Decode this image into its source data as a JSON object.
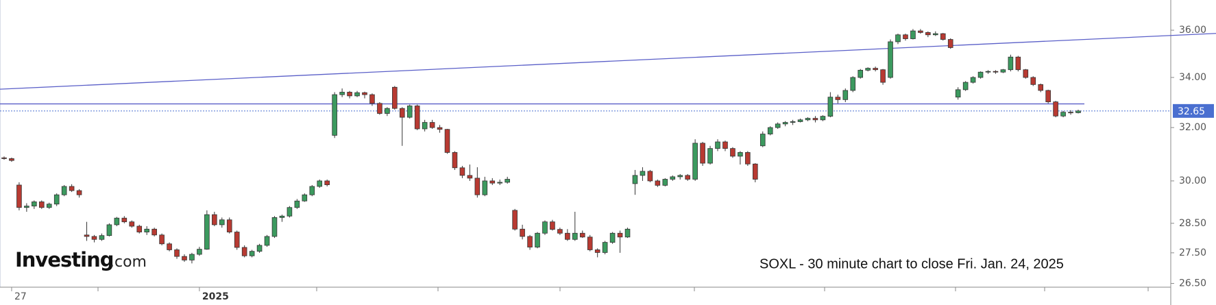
{
  "chart_data": {
    "type": "candlestick",
    "log_scale": true,
    "ylim": [
      26.38,
      37.34
    ],
    "yticks": [
      {
        "value": 26.5,
        "label": "26.50"
      },
      {
        "value": 27.5,
        "label": "27.50"
      },
      {
        "value": 28.5,
        "label": "28.50"
      },
      {
        "value": 30,
        "label": "30.00"
      },
      {
        "value": 32,
        "label": "32.00"
      },
      {
        "value": 34,
        "label": "34.00"
      },
      {
        "value": 36,
        "label": "36.00"
      }
    ],
    "up_color": "#3c9a5f",
    "down_color": "#b83a32",
    "last_price": 32.65,
    "last_price_color": "#4a6fd0",
    "trendline": {
      "start": 33.52,
      "end": 35.86,
      "color": "#5a5fc8"
    },
    "level": {
      "value": 32.93,
      "color": "#5a5fc8"
    },
    "annotation": "SOXL - 30 minute chart to close Fri. Jan. 24, 2025",
    "logo": [
      "Investing",
      ".com"
    ],
    "categories": [
      null,
      "27",
      null,
      null,
      null,
      null,
      null,
      null,
      null,
      null,
      null,
      null,
      null,
      null,
      null,
      null,
      null,
      null,
      null,
      null,
      null,
      null,
      null,
      null,
      null,
      null,
      "2025",
      null,
      null,
      null,
      null,
      null,
      null,
      null,
      null,
      null,
      null,
      null,
      null,
      null,
      null,
      null,
      null,
      null,
      null,
      null,
      null,
      null,
      null,
      null,
      null,
      null,
      null,
      null,
      null,
      null,
      null,
      null,
      null,
      null,
      null,
      null,
      null,
      null,
      null,
      null,
      null,
      null,
      null,
      null,
      null,
      null,
      null,
      null,
      null,
      null,
      null,
      null,
      null,
      null,
      null,
      null,
      null,
      null,
      null,
      null,
      null,
      null,
      null,
      null,
      null,
      null,
      null,
      null,
      null,
      null,
      null,
      null,
      null,
      null,
      null,
      null,
      null,
      null,
      null,
      null,
      null,
      null,
      null,
      null,
      null,
      null,
      null,
      null,
      null,
      null,
      null,
      null,
      null,
      null,
      null,
      null,
      null,
      null,
      null,
      null,
      null,
      null,
      null,
      null,
      null,
      null,
      null,
      null,
      null,
      null,
      null,
      null,
      null,
      null,
      null,
      null,
      null,
      null
    ],
    "candles": [
      [
        30.85,
        30.9,
        30.78,
        30.82
      ],
      [
        30.82,
        30.86,
        30.7,
        30.75
      ],
      [
        29.85,
        29.95,
        28.95,
        29.05
      ],
      [
        29.05,
        29.2,
        28.9,
        29.1
      ],
      [
        29.1,
        29.3,
        29.0,
        29.25
      ],
      [
        29.25,
        29.3,
        29.0,
        29.05
      ],
      [
        29.05,
        29.22,
        29.0,
        29.17
      ],
      [
        29.17,
        29.55,
        29.1,
        29.5
      ],
      [
        29.5,
        29.85,
        29.45,
        29.8
      ],
      [
        29.8,
        29.88,
        29.6,
        29.65
      ],
      [
        29.65,
        29.7,
        29.4,
        29.5
      ],
      [
        28.1,
        28.55,
        27.9,
        28.05
      ],
      [
        28.05,
        28.1,
        27.85,
        27.95
      ],
      [
        27.95,
        28.15,
        27.9,
        28.08
      ],
      [
        28.08,
        28.5,
        28.05,
        28.45
      ],
      [
        28.45,
        28.72,
        28.4,
        28.68
      ],
      [
        28.68,
        28.75,
        28.5,
        28.55
      ],
      [
        28.55,
        28.6,
        28.35,
        28.4
      ],
      [
        28.4,
        28.45,
        28.15,
        28.2
      ],
      [
        28.2,
        28.4,
        28.1,
        28.3
      ],
      [
        28.3,
        28.35,
        28.05,
        28.1
      ],
      [
        28.1,
        28.15,
        27.75,
        27.8
      ],
      [
        27.8,
        27.85,
        27.55,
        27.6
      ],
      [
        27.6,
        27.65,
        27.3,
        27.38
      ],
      [
        27.38,
        27.45,
        27.2,
        27.26
      ],
      [
        27.26,
        27.5,
        27.15,
        27.45
      ],
      [
        27.45,
        27.7,
        27.4,
        27.62
      ],
      [
        27.62,
        28.95,
        27.6,
        28.8
      ],
      [
        28.8,
        28.9,
        28.4,
        28.45
      ],
      [
        28.45,
        28.7,
        28.35,
        28.62
      ],
      [
        28.62,
        28.7,
        28.15,
        28.2
      ],
      [
        28.2,
        28.25,
        27.6,
        27.68
      ],
      [
        27.68,
        27.75,
        27.35,
        27.4
      ],
      [
        27.4,
        27.6,
        27.35,
        27.55
      ],
      [
        27.55,
        27.8,
        27.5,
        27.75
      ],
      [
        27.75,
        28.1,
        27.7,
        28.05
      ],
      [
        28.05,
        28.75,
        28.0,
        28.7
      ],
      [
        28.7,
        28.8,
        28.55,
        28.75
      ],
      [
        28.75,
        29.1,
        28.7,
        29.05
      ],
      [
        29.05,
        29.35,
        29.0,
        29.28
      ],
      [
        29.28,
        29.55,
        29.25,
        29.5
      ],
      [
        29.5,
        29.85,
        29.45,
        29.8
      ],
      [
        29.8,
        30.05,
        29.75,
        30.0
      ],
      [
        30.0,
        30.05,
        29.8,
        29.86
      ],
      [
        31.7,
        33.4,
        31.6,
        33.3
      ],
      [
        33.3,
        33.55,
        33.2,
        33.4
      ],
      [
        33.4,
        33.45,
        33.15,
        33.25
      ],
      [
        33.25,
        33.45,
        33.2,
        33.38
      ],
      [
        33.38,
        33.42,
        33.15,
        33.3
      ],
      [
        33.3,
        33.35,
        32.85,
        32.95
      ],
      [
        32.95,
        33.0,
        32.5,
        32.55
      ],
      [
        32.55,
        32.8,
        32.45,
        32.75
      ],
      [
        33.6,
        33.65,
        32.7,
        32.75
      ],
      [
        32.75,
        32.8,
        31.3,
        32.4
      ],
      [
        32.4,
        32.9,
        32.35,
        32.85
      ],
      [
        32.85,
        32.9,
        31.9,
        31.95
      ],
      [
        31.95,
        32.3,
        31.85,
        32.2
      ],
      [
        32.2,
        32.3,
        31.95,
        32.0
      ],
      [
        32.0,
        32.1,
        31.8,
        31.93
      ],
      [
        31.93,
        31.95,
        31.0,
        31.05
      ],
      [
        31.05,
        31.1,
        30.4,
        30.48
      ],
      [
        30.48,
        30.55,
        30.1,
        30.2
      ],
      [
        30.2,
        30.6,
        30.0,
        30.1
      ],
      [
        30.1,
        30.5,
        29.4,
        29.5
      ],
      [
        29.5,
        30.15,
        29.45,
        30.0
      ],
      [
        30.0,
        30.1,
        29.85,
        29.92
      ],
      [
        29.92,
        30.05,
        29.85,
        29.95
      ],
      [
        29.95,
        30.15,
        29.9,
        30.06
      ],
      [
        28.95,
        29.0,
        28.25,
        28.3
      ],
      [
        28.3,
        28.45,
        27.95,
        28.05
      ],
      [
        28.05,
        28.1,
        27.6,
        27.69
      ],
      [
        27.69,
        28.2,
        27.65,
        28.16
      ],
      [
        28.16,
        28.6,
        28.1,
        28.55
      ],
      [
        28.55,
        28.62,
        28.25,
        28.29
      ],
      [
        28.29,
        28.35,
        28.1,
        28.16
      ],
      [
        28.16,
        28.3,
        27.9,
        27.95
      ],
      [
        27.95,
        28.9,
        27.9,
        28.16
      ],
      [
        28.16,
        28.25,
        28.0,
        28.03
      ],
      [
        28.03,
        28.1,
        27.55,
        27.6
      ],
      [
        27.6,
        27.65,
        27.35,
        27.51
      ],
      [
        27.51,
        27.9,
        27.45,
        27.85
      ],
      [
        27.85,
        28.2,
        27.8,
        28.16
      ],
      [
        28.16,
        28.25,
        27.5,
        28.03
      ],
      [
        28.03,
        28.35,
        28.0,
        28.3
      ],
      [
        29.9,
        30.4,
        29.5,
        30.2
      ],
      [
        30.2,
        30.5,
        30.0,
        30.35
      ],
      [
        30.35,
        30.4,
        29.95,
        30.0
      ],
      [
        30.0,
        30.05,
        29.78,
        29.84
      ],
      [
        29.84,
        30.1,
        29.8,
        30.06
      ],
      [
        30.06,
        30.2,
        30.0,
        30.15
      ],
      [
        30.15,
        30.25,
        30.05,
        30.2
      ],
      [
        30.2,
        30.25,
        30.0,
        30.06
      ],
      [
        30.06,
        31.55,
        30.0,
        31.4
      ],
      [
        31.4,
        31.45,
        30.55,
        30.65
      ],
      [
        30.65,
        31.3,
        30.6,
        31.2
      ],
      [
        31.2,
        31.55,
        31.1,
        31.45
      ],
      [
        31.45,
        31.5,
        31.1,
        31.2
      ],
      [
        31.2,
        31.25,
        30.85,
        30.91
      ],
      [
        30.91,
        31.1,
        30.6,
        31.05
      ],
      [
        31.05,
        31.1,
        30.55,
        30.62
      ],
      [
        30.62,
        30.65,
        29.95,
        30.06
      ],
      [
        31.3,
        31.85,
        31.25,
        31.75
      ],
      [
        31.75,
        32.05,
        31.7,
        32.0
      ],
      [
        32.0,
        32.2,
        31.95,
        32.14
      ],
      [
        32.14,
        32.25,
        32.05,
        32.2
      ],
      [
        32.2,
        32.3,
        32.1,
        32.23
      ],
      [
        32.23,
        32.35,
        32.2,
        32.3
      ],
      [
        32.3,
        32.4,
        32.25,
        32.36
      ],
      [
        32.36,
        32.45,
        32.2,
        32.3
      ],
      [
        32.3,
        32.48,
        32.25,
        32.44
      ],
      [
        32.44,
        33.4,
        32.4,
        33.2
      ],
      [
        33.2,
        33.3,
        32.95,
        33.1
      ],
      [
        33.1,
        33.55,
        33.0,
        33.47
      ],
      [
        33.47,
        34.05,
        33.4,
        34.0
      ],
      [
        34.0,
        34.35,
        33.95,
        34.3
      ],
      [
        34.3,
        34.42,
        34.25,
        34.38
      ],
      [
        34.38,
        34.45,
        34.25,
        34.32
      ],
      [
        34.32,
        34.35,
        33.7,
        33.8
      ],
      [
        34.0,
        35.6,
        33.95,
        35.5
      ],
      [
        35.5,
        35.85,
        35.4,
        35.8
      ],
      [
        35.8,
        35.85,
        35.55,
        35.63
      ],
      [
        35.63,
        36.05,
        35.6,
        35.97
      ],
      [
        35.97,
        36.05,
        35.85,
        35.9
      ],
      [
        35.9,
        35.95,
        35.7,
        35.8
      ],
      [
        35.8,
        35.95,
        35.75,
        35.85
      ],
      [
        35.85,
        35.88,
        35.55,
        35.6
      ],
      [
        35.6,
        35.65,
        35.2,
        35.25
      ],
      [
        33.2,
        33.6,
        33.1,
        33.5
      ],
      [
        33.5,
        33.85,
        33.45,
        33.8
      ],
      [
        33.8,
        34.05,
        33.75,
        34.0
      ],
      [
        34.0,
        34.25,
        33.95,
        34.22
      ],
      [
        34.22,
        34.3,
        34.15,
        34.25
      ],
      [
        34.25,
        34.3,
        34.15,
        34.22
      ],
      [
        34.22,
        34.35,
        34.18,
        34.32
      ],
      [
        34.32,
        34.95,
        34.25,
        34.85
      ],
      [
        34.85,
        34.9,
        34.25,
        34.32
      ],
      [
        34.32,
        34.35,
        33.95,
        34.0
      ],
      [
        34.0,
        34.05,
        33.65,
        33.71
      ],
      [
        33.71,
        33.75,
        33.4,
        33.47
      ],
      [
        33.47,
        33.5,
        32.95,
        33.01
      ],
      [
        33.01,
        33.05,
        32.4,
        32.45
      ],
      [
        32.45,
        32.65,
        32.4,
        32.6
      ],
      [
        32.6,
        32.68,
        32.5,
        32.58
      ],
      [
        32.58,
        32.7,
        32.55,
        32.65
      ]
    ]
  }
}
